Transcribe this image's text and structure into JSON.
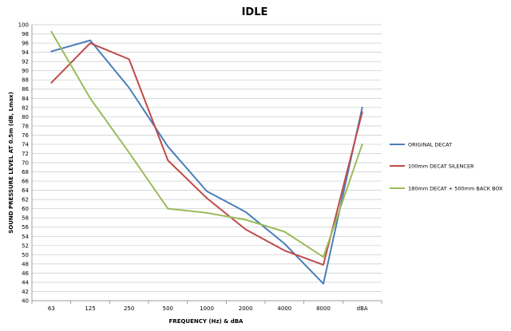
{
  "chart_data": {
    "type": "line",
    "title": "IDLE",
    "xlabel": "FREQUENCY (Hz) & dBA",
    "ylabel": "SOUND PRESSURE LEVEL AT 0.5m (dB, Lmax)",
    "categories": [
      "63",
      "125",
      "250",
      "500",
      "1000",
      "2000",
      "4000",
      "8000",
      "dBA"
    ],
    "ylim": [
      40,
      100
    ],
    "ytick_step": 2,
    "grid": true,
    "legend_position": "right",
    "series": [
      {
        "name": "ORIGINAL DECAT",
        "color": "#4a7ebb",
        "values": [
          94.2,
          96.6,
          86.3,
          73.5,
          63.8,
          59.3,
          52.4,
          43.7,
          82
        ]
      },
      {
        "name": "100mm DECAT SILENCER",
        "color": "#be4b48",
        "values": [
          87.4,
          96,
          92.5,
          70.5,
          62.3,
          55.5,
          50.9,
          47.8,
          81
        ]
      },
      {
        "name": "180mm DECAT + 500mm BACK BOX",
        "color": "#9bbb59",
        "values": [
          98.5,
          84,
          72.2,
          60,
          59.1,
          57.6,
          55,
          49.5,
          74
        ]
      }
    ]
  }
}
